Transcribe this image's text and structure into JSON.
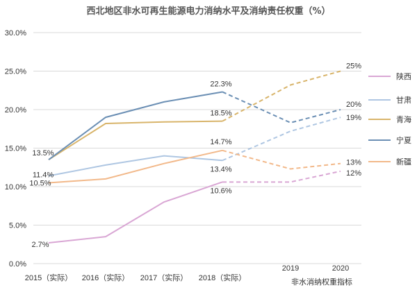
{
  "chart_data": {
    "type": "line",
    "title": "西北地区非水可再生能源电力消纳水平及消纳责任权重（%）",
    "categories": [
      "2015（实际）",
      "2016（实际）",
      "2017（实际）",
      "2018（实际）",
      "2019",
      "2020"
    ],
    "x_note": "非水消纳权重指标",
    "y_ticks": [
      "0.0%",
      "5.0%",
      "10.0%",
      "15.0%",
      "20.0%",
      "25.0%",
      "30.0%"
    ],
    "ylim": [
      0,
      30
    ],
    "grid": true,
    "legend_position": "right",
    "actual_solid_through": "2018（实际）",
    "target_dashed_from": "2018（实际）",
    "series": [
      {
        "name": "陕西",
        "color": "#d9a6d4",
        "values": [
          2.7,
          3.5,
          8.0,
          10.6,
          10.6,
          12.0
        ]
      },
      {
        "name": "甘肃",
        "color": "#aec6e2",
        "values": [
          11.4,
          12.8,
          14.0,
          13.4,
          17.2,
          19.0
        ]
      },
      {
        "name": "青海",
        "color": "#d8b46a",
        "values": [
          13.5,
          18.2,
          18.4,
          18.5,
          23.2,
          25.0
        ]
      },
      {
        "name": "宁夏",
        "color": "#6b8fb4",
        "values": [
          13.5,
          19.0,
          21.0,
          22.3,
          18.3,
          20.0
        ]
      },
      {
        "name": "新疆",
        "color": "#f2b889",
        "values": [
          10.5,
          11.0,
          13.0,
          14.7,
          12.3,
          13.0
        ]
      }
    ],
    "data_labels": [
      {
        "series": "陕西",
        "index": 0,
        "text": "2.7%"
      },
      {
        "series": "陕西",
        "index": 3,
        "text": "10.6%"
      },
      {
        "series": "陕西",
        "index": 5,
        "text": "12%"
      },
      {
        "series": "甘肃",
        "index": 0,
        "text": "11.4%"
      },
      {
        "series": "甘肃",
        "index": 3,
        "text": "13.4%"
      },
      {
        "series": "甘肃",
        "index": 5,
        "text": "19%"
      },
      {
        "series": "青海",
        "index": 0,
        "text": "13.5%"
      },
      {
        "series": "青海",
        "index": 3,
        "text": "18.5%"
      },
      {
        "series": "青海",
        "index": 5,
        "text": "25%"
      },
      {
        "series": "宁夏",
        "index": 3,
        "text": "22.3%"
      },
      {
        "series": "宁夏",
        "index": 5,
        "text": "20%"
      },
      {
        "series": "新疆",
        "index": 0,
        "text": "10.5%"
      },
      {
        "series": "新疆",
        "index": 3,
        "text": "14.7%"
      },
      {
        "series": "新疆",
        "index": 5,
        "text": "13%"
      }
    ]
  }
}
